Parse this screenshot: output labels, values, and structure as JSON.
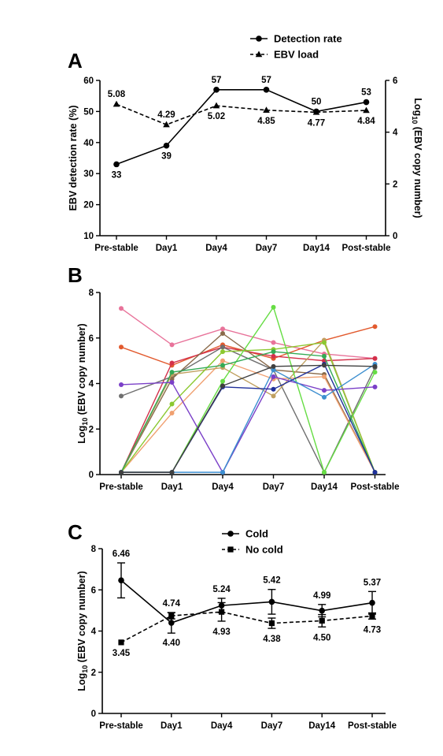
{
  "chart_data": [
    {
      "panel": "A",
      "type": "line",
      "categories": [
        "Pre-stable",
        "Day1",
        "Day4",
        "Day7",
        "Day14",
        "Post-stable"
      ],
      "ylabel": "EBV detection rate (%)",
      "y2label_pre": "Log",
      "y2label_sub": "10",
      "y2label_post": " (EBV copy number)",
      "ylim": [
        10,
        60
      ],
      "yticks": [
        "10",
        "20",
        "30",
        "40",
        "50",
        "60"
      ],
      "y2lim": [
        0,
        6
      ],
      "y2ticks": [
        "0",
        "2",
        "4",
        "6"
      ],
      "grid": false,
      "legend_position": "top",
      "series": [
        {
          "name": "Detection rate",
          "axis": "left",
          "style": "solid",
          "marker": "circle",
          "values": [
            33,
            39,
            57,
            57,
            50,
            53
          ],
          "labels": [
            "33",
            "39",
            "57",
            "57",
            "50",
            "53"
          ]
        },
        {
          "name": "EBV load",
          "axis": "right",
          "style": "dashed",
          "marker": "triangle",
          "values": [
            5.08,
            4.29,
            5.02,
            4.85,
            4.77,
            4.84
          ],
          "labels": [
            "5.08",
            "4.29",
            "5.02",
            "4.85",
            "4.77",
            "4.84"
          ]
        }
      ]
    },
    {
      "panel": "B",
      "type": "line",
      "categories": [
        "Pre-stable",
        "Day1",
        "Day4",
        "Day7",
        "Day14",
        "Post-stable"
      ],
      "ylabel_pre": "Log",
      "ylabel_sub": "10",
      "ylabel_post": " (EBV copy number)",
      "ylim": [
        0,
        8
      ],
      "yticks": [
        "0",
        "2",
        "4",
        "6",
        "8"
      ],
      "grid": false,
      "series": [
        {
          "color": "#e8739a",
          "values": [
            7.3,
            5.7,
            6.4,
            5.8,
            5.3,
            5.1
          ]
        },
        {
          "color": "#e25a2e",
          "values": [
            5.6,
            4.8,
            5.7,
            5.1,
            5.9,
            6.5
          ]
        },
        {
          "color": "#d4304a",
          "values": [
            0.1,
            4.9,
            5.6,
            5.2,
            5.0,
            5.1
          ]
        },
        {
          "color": "#6f6f6f",
          "values": [
            3.45,
            4.3,
            5.6,
            4.6,
            0.1,
            4.7
          ]
        },
        {
          "color": "#8a6a4a",
          "values": [
            0.1,
            4.2,
            6.2,
            4.6,
            4.4,
            0.1
          ]
        },
        {
          "color": "#f0a070",
          "values": [
            0.1,
            2.7,
            5.0,
            4.2,
            4.3,
            0.1
          ]
        },
        {
          "color": "#c0a060",
          "values": [
            0.1,
            4.4,
            4.7,
            3.45,
            5.9,
            0.1
          ]
        },
        {
          "color": "#8cc830",
          "values": [
            0.1,
            3.1,
            5.4,
            5.5,
            5.8,
            0.1
          ]
        },
        {
          "color": "#66dd44",
          "values": [
            0.1,
            0.1,
            4.1,
            7.35,
            0.1,
            4.5
          ]
        },
        {
          "color": "#33aa55",
          "values": [
            0.1,
            4.5,
            4.8,
            5.4,
            5.2,
            0.1
          ]
        },
        {
          "color": "#7b40c8",
          "values": [
            3.95,
            4.05,
            0.1,
            4.3,
            3.7,
            3.85
          ]
        },
        {
          "color": "#3d8fd0",
          "values": [
            0.1,
            0.1,
            0.1,
            4.6,
            3.4,
            4.85
          ]
        },
        {
          "color": "#1f2f9a",
          "values": [
            0.1,
            0.1,
            3.85,
            3.75,
            4.85,
            0.1
          ]
        },
        {
          "color": "#404040",
          "values": [
            0.1,
            0.1,
            3.9,
            4.75,
            4.8,
            4.75
          ]
        }
      ]
    },
    {
      "panel": "C",
      "type": "line",
      "categories": [
        "Pre-stable",
        "Day1",
        "Day4",
        "Day7",
        "Day14",
        "Post-stable"
      ],
      "ylabel_pre": "Log",
      "ylabel_sub": "10",
      "ylabel_post": " (EBV copy number)",
      "ylim": [
        0,
        8
      ],
      "yticks": [
        "0",
        "2",
        "4",
        "6",
        "8"
      ],
      "grid": false,
      "legend_position": "top",
      "series": [
        {
          "name": "Cold",
          "style": "solid",
          "marker": "circle",
          "values": [
            6.46,
            4.4,
            5.24,
            5.42,
            4.99,
            5.37
          ],
          "errors": [
            0.85,
            0.5,
            0.35,
            0.6,
            0.3,
            0.55
          ],
          "labels": [
            "6.46",
            "4.40",
            "5.24",
            "5.42",
            "4.99",
            "5.37"
          ]
        },
        {
          "name": "No cold",
          "style": "dashed",
          "marker": "square",
          "values": [
            3.45,
            4.74,
            4.93,
            4.38,
            4.5,
            4.73
          ],
          "errors": [
            0,
            0.15,
            0.45,
            0.25,
            0.3,
            0.15
          ],
          "labels": [
            "3.45",
            "4.74",
            "4.93",
            "4.38",
            "4.50",
            "4.73"
          ]
        }
      ]
    }
  ]
}
